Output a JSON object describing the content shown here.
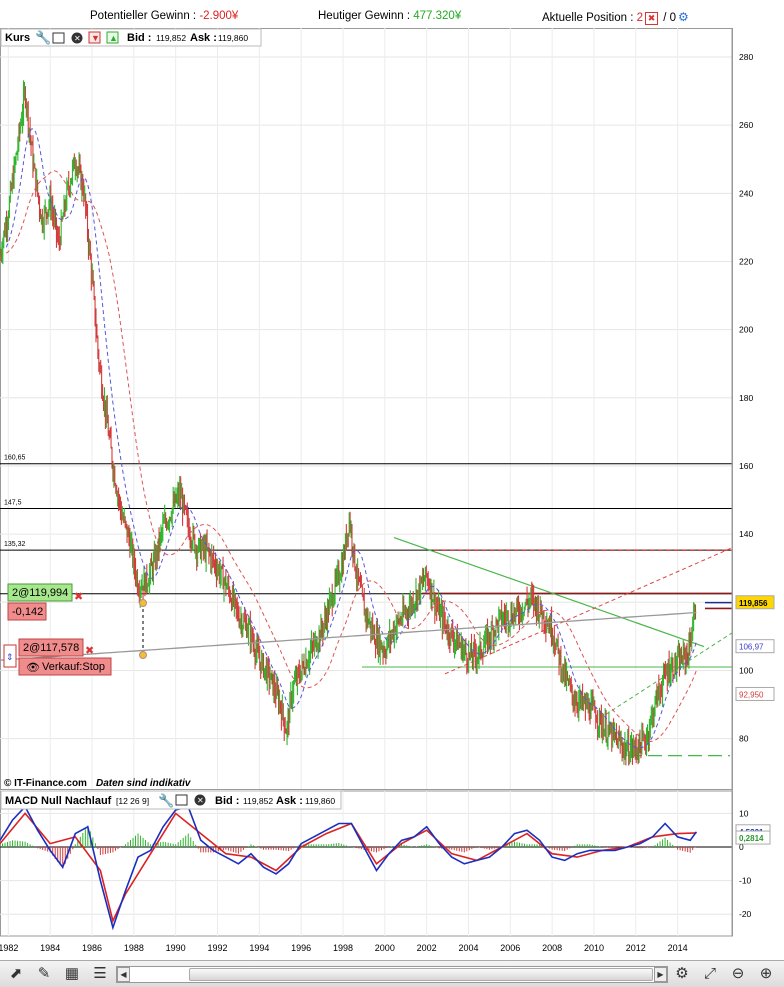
{
  "header": {
    "pot_label": "Potentieller Gewinn : ",
    "pot_value": "-2.900¥",
    "today_label": "Heutiger Gewinn : ",
    "today_value": "477.320¥",
    "pos_label": "Aktuelle Position : ",
    "pos_value": "2",
    "pos_sep": " / ",
    "pos_value2": "0"
  },
  "price_panel": {
    "title": "Kurs",
    "bid_label": "Bid : ",
    "bid_value": "119,852",
    "ask_label": "Ask : ",
    "ask_value": "119,860",
    "watermark": "© IT-Finance.com",
    "disclaimer": "Daten sind indikativ"
  },
  "macd_panel": {
    "title": "MACD Null Nachlauf",
    "params": "[12 26 9]",
    "bid_label": "Bid : ",
    "bid_value": "119,852",
    "ask_label": "Ask : ",
    "ask_value": "119,860"
  },
  "orders": {
    "buy_label": "2@119,994",
    "pnl": "-0,142",
    "stop_label": "2@117,578",
    "stop_type": "Verkauf:Stop"
  },
  "chart_data": [
    {
      "type": "line",
      "name": "Kurs",
      "x": [
        1981.6,
        1982.0,
        1982.4,
        1982.8,
        1983.2,
        1983.6,
        1984.0,
        1984.4,
        1984.8,
        1985.2,
        1985.6,
        1986.0,
        1986.3,
        1986.6,
        1987.0,
        1987.4,
        1987.8,
        1988.2,
        1988.6,
        1989.0,
        1989.4,
        1989.8,
        1990.2,
        1990.6,
        1991.0,
        1991.5,
        1992.0,
        1992.5,
        1993.0,
        1993.5,
        1994.0,
        1994.5,
        1995.0,
        1995.3,
        1995.6,
        1996.0,
        1996.5,
        1997.0,
        1997.5,
        1998.0,
        1998.3,
        1998.6,
        1999.0,
        1999.5,
        2000.0,
        2000.5,
        2001.0,
        2001.5,
        2002.0,
        2002.5,
        2003.0,
        2003.5,
        2004.0,
        2004.5,
        2005.0,
        2005.5,
        2006.0,
        2006.5,
        2007.0,
        2007.5,
        2008.0,
        2008.5,
        2009.0,
        2009.5,
        2010.0,
        2010.5,
        2011.0,
        2011.5,
        2012.0,
        2012.5,
        2013.0,
        2013.5,
        2014.0,
        2014.5,
        2014.9
      ],
      "values": [
        222,
        235,
        252,
        270,
        248,
        232,
        238,
        225,
        240,
        250,
        241,
        215,
        192,
        178,
        160,
        146,
        138,
        125,
        126,
        132,
        142,
        147,
        152,
        142,
        136,
        135,
        130,
        124,
        116,
        112,
        103,
        98,
        90,
        82,
        95,
        100,
        106,
        112,
        122,
        132,
        145,
        130,
        118,
        110,
        106,
        113,
        117,
        122,
        128,
        118,
        112,
        108,
        104,
        105,
        110,
        115,
        116,
        118,
        121,
        117,
        112,
        100,
        92,
        90,
        88,
        83,
        80,
        77,
        77,
        80,
        92,
        100,
        102,
        105,
        119.85
      ],
      "ylim": [
        70,
        290
      ],
      "xlim": [
        1981.6,
        2016.6
      ]
    },
    {
      "type": "line",
      "name": "MACD",
      "x": [
        1981.6,
        1982.2,
        1982.8,
        1983.4,
        1984.0,
        1984.6,
        1985.2,
        1985.8,
        1986.4,
        1987.0,
        1987.6,
        1988.2,
        1988.8,
        1989.4,
        1990.0,
        1990.6,
        1991.2,
        1991.8,
        1992.4,
        1993.0,
        1993.6,
        1994.2,
        1994.8,
        1995.4,
        1996.0,
        1996.6,
        1997.2,
        1997.8,
        1998.4,
        1999.0,
        1999.6,
        2000.2,
        2000.8,
        2001.4,
        2002.0,
        2002.6,
        2003.2,
        2003.8,
        2004.4,
        2005.0,
        2005.6,
        2006.2,
        2006.8,
        2007.4,
        2008.0,
        2008.6,
        2009.2,
        2009.8,
        2010.4,
        2011.0,
        2011.6,
        2012.2,
        2012.8,
        2013.4,
        2014.0,
        2014.6,
        2014.9
      ],
      "values": [
        2,
        8,
        12,
        5,
        -1,
        -6,
        4,
        6,
        -10,
        -24,
        -13,
        -3,
        -1,
        6,
        11,
        12,
        2,
        -1,
        -3,
        -5,
        -2,
        -6,
        -8,
        -5,
        1,
        3,
        5,
        7,
        7,
        0,
        -7,
        -2,
        2,
        3,
        6,
        1,
        -3,
        -5,
        -4,
        -3,
        0,
        4,
        5,
        2,
        -3,
        -4,
        -2,
        -1,
        -1,
        -1,
        0,
        1,
        3,
        7,
        3,
        2,
        4.53
      ],
      "ylim": [
        -25,
        12
      ],
      "yticks": [
        10,
        0,
        -10,
        -20
      ]
    },
    {
      "type": "line",
      "name": "Signal",
      "x": [
        1981.6,
        1982.8,
        1984.0,
        1985.2,
        1986.4,
        1987.0,
        1987.6,
        1988.8,
        1990.0,
        1991.2,
        1992.4,
        1993.6,
        1994.8,
        1996.0,
        1997.2,
        1998.4,
        1999.6,
        2000.8,
        2002.0,
        2003.2,
        2004.4,
        2005.6,
        2006.8,
        2008.0,
        2009.2,
        2010.4,
        2011.6,
        2012.8,
        2014.0,
        2014.9
      ],
      "values": [
        1,
        10,
        1,
        3,
        -7,
        -22,
        -14,
        -2,
        10,
        4,
        -2,
        -3,
        -7,
        0,
        4,
        7,
        -5,
        1,
        5,
        -2,
        -4,
        0,
        4,
        -2,
        -3,
        -1,
        0,
        3,
        4,
        4.2
      ]
    }
  ],
  "axes": {
    "x_ticks": [
      "1982",
      "1984",
      "1986",
      "1988",
      "1990",
      "1992",
      "1994",
      "1996",
      "1998",
      "2000",
      "2002",
      "2004",
      "2006",
      "2008",
      "2010",
      "2012",
      "2014"
    ],
    "price_ticks": [
      "280",
      "260",
      "240",
      "220",
      "200",
      "180",
      "160",
      "140",
      "120",
      "100",
      "80"
    ],
    "macd_ticks": [
      "10",
      "0",
      "-10",
      "-20"
    ]
  },
  "levels": [
    {
      "value": 160.65,
      "label": "160,65",
      "color": "#000000"
    },
    {
      "value": 147.5,
      "label": "147,5",
      "color": "#000000"
    },
    {
      "value": 135.32,
      "label": "135,32",
      "color": "#000000"
    },
    {
      "value": 122.5,
      "label": "",
      "color": "#000000"
    }
  ],
  "price_labels": [
    {
      "text": "119,856",
      "color": "#000000",
      "bg": "#ffd700"
    },
    {
      "text": "106,97",
      "color": "#3a3ad0",
      "bg": "#ffffff"
    },
    {
      "text": "92,950",
      "color": "#d23a3a",
      "bg": "#ffffff"
    }
  ],
  "macd_labels": [
    {
      "text": "4,5321",
      "color": "#1a2fbf",
      "bg": "#ffffff"
    },
    {
      "text": "0,2814",
      "color": "#2a9a2a",
      "bg": "#ffffff"
    }
  ],
  "colors": {
    "candle": "#2db52d",
    "candle_down": "#d23a3a",
    "ma_fast": "#5555dd",
    "ma_slow": "#dd5555",
    "ma_long": "#999999",
    "trend_green": "#49b649",
    "macd_line": "#1a2fbf",
    "signal_line": "#dd2222",
    "gain_negative": "#dd2222",
    "gain_positive": "#22aa22"
  },
  "toolbar_icons": [
    "cursor-icon",
    "line-tool-icon",
    "indicator-icon",
    "object-list-icon",
    "scroll-left-icon",
    "scroll-right-icon",
    "settings-icon",
    "zoom-fit-icon",
    "zoom-out-icon",
    "zoom-in-icon"
  ]
}
